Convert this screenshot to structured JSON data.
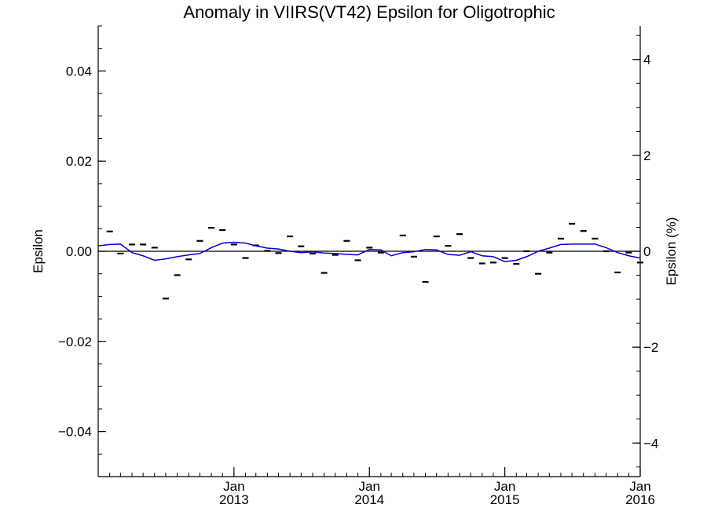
{
  "chart_data": {
    "type": "line",
    "title": "Anomaly in VIIRS(VT42) Epsilon for Oligotrophic",
    "xlabel": "",
    "ylabel": "Epsilon",
    "ylabel_right": "Epsilon (%)",
    "x_axis": {
      "type": "date",
      "range": [
        "2012-01-01",
        "2016-01-01"
      ],
      "ticks": [
        {
          "date": "2013-01-01",
          "line1": "Jan",
          "line2": "2013"
        },
        {
          "date": "2014-01-01",
          "line1": "Jan",
          "line2": "2014"
        },
        {
          "date": "2015-01-01",
          "line1": "Jan",
          "line2": "2015"
        },
        {
          "date": "2016-01-01",
          "line1": "Jan",
          "line2": "2016"
        }
      ],
      "minor_ticks_per_month": true
    },
    "ylim": [
      -0.05,
      0.05
    ],
    "y_ticks": [
      {
        "value": -0.04,
        "label": "−0.04"
      },
      {
        "value": -0.02,
        "label": "−0.02"
      },
      {
        "value": 0.0,
        "label": "0.00"
      },
      {
        "value": 0.02,
        "label": "0.02"
      },
      {
        "value": 0.04,
        "label": "0.04"
      }
    ],
    "y_minor_step": 0.005,
    "ylim_right": [
      -4.7,
      4.7
    ],
    "y_ticks_right": [
      {
        "value": -4,
        "label": "−4"
      },
      {
        "value": -2,
        "label": "−2"
      },
      {
        "value": 0,
        "label": "0"
      },
      {
        "value": 2,
        "label": "2"
      },
      {
        "value": 4,
        "label": "4"
      }
    ],
    "y_minor_step_right": 0.5,
    "grid": false,
    "zero_line": {
      "y": 0.0,
      "color": "#000000"
    },
    "series": [
      {
        "marker": "dash",
        "color": "#000000",
        "points": [
          {
            "x": "2012-02-01",
            "y": 0.0044
          },
          {
            "x": "2012-03-01",
            "y": -0.0005
          },
          {
            "x": "2012-04-01",
            "y": 0.0015
          },
          {
            "x": "2012-05-01",
            "y": 0.0015
          },
          {
            "x": "2012-06-01",
            "y": 0.0008
          },
          {
            "x": "2012-07-01",
            "y": -0.0105
          },
          {
            "x": "2012-08-01",
            "y": -0.0053
          },
          {
            "x": "2012-09-01",
            "y": -0.0018
          },
          {
            "x": "2012-10-01",
            "y": 0.0023
          },
          {
            "x": "2012-11-01",
            "y": 0.0052
          },
          {
            "x": "2012-12-01",
            "y": 0.0047
          },
          {
            "x": "2013-01-01",
            "y": 0.0015
          },
          {
            "x": "2013-02-01",
            "y": -0.0015
          },
          {
            "x": "2013-03-01",
            "y": 0.0013
          },
          {
            "x": "2013-04-01",
            "y": 0.0001
          },
          {
            "x": "2013-05-01",
            "y": -0.0004
          },
          {
            "x": "2013-06-01",
            "y": 0.0033
          },
          {
            "x": "2013-07-01",
            "y": 0.0011
          },
          {
            "x": "2013-08-01",
            "y": -0.0005
          },
          {
            "x": "2013-09-01",
            "y": -0.0048
          },
          {
            "x": "2013-10-01",
            "y": -0.0008
          },
          {
            "x": "2013-11-01",
            "y": 0.0023
          },
          {
            "x": "2013-12-01",
            "y": -0.002
          },
          {
            "x": "2014-01-01",
            "y": 0.0008
          },
          {
            "x": "2014-02-01",
            "y": -0.0003
          },
          {
            "x": "2014-04-01",
            "y": 0.0035
          },
          {
            "x": "2014-05-01",
            "y": -0.0012
          },
          {
            "x": "2014-06-01",
            "y": -0.0068
          },
          {
            "x": "2014-07-01",
            "y": 0.0033
          },
          {
            "x": "2014-08-01",
            "y": 0.0012
          },
          {
            "x": "2014-09-01",
            "y": 0.0038
          },
          {
            "x": "2014-10-01",
            "y": -0.0015
          },
          {
            "x": "2014-11-01",
            "y": -0.0027
          },
          {
            "x": "2014-12-01",
            "y": -0.0025
          },
          {
            "x": "2015-01-01",
            "y": -0.0015
          },
          {
            "x": "2015-02-01",
            "y": -0.0028
          },
          {
            "x": "2015-03-01",
            "y": 0.0
          },
          {
            "x": "2015-04-01",
            "y": -0.005
          },
          {
            "x": "2015-05-01",
            "y": -0.0003
          },
          {
            "x": "2015-06-01",
            "y": 0.0028
          },
          {
            "x": "2015-07-01",
            "y": 0.0061
          },
          {
            "x": "2015-08-01",
            "y": 0.0045
          },
          {
            "x": "2015-09-01",
            "y": 0.0028
          },
          {
            "x": "2015-10-01",
            "y": 0.0
          },
          {
            "x": "2015-11-01",
            "y": -0.0047
          },
          {
            "x": "2015-12-01",
            "y": -0.0003
          },
          {
            "x": "2016-01-01",
            "y": -0.0025
          }
        ]
      },
      {
        "marker": "none",
        "color": "#0000cc",
        "points": [
          {
            "x": "2012-01-01",
            "y": 0.0012
          },
          {
            "x": "2012-02-01",
            "y": 0.0015
          },
          {
            "x": "2012-03-01",
            "y": 0.0016
          },
          {
            "x": "2012-04-01",
            "y": -0.0003
          },
          {
            "x": "2012-05-01",
            "y": -0.001
          },
          {
            "x": "2012-06-01",
            "y": -0.002
          },
          {
            "x": "2012-07-01",
            "y": -0.0017
          },
          {
            "x": "2012-08-01",
            "y": -0.0012
          },
          {
            "x": "2012-09-01",
            "y": -0.0008
          },
          {
            "x": "2012-10-01",
            "y": -0.0005
          },
          {
            "x": "2012-11-01",
            "y": 0.0008
          },
          {
            "x": "2012-12-01",
            "y": 0.0018
          },
          {
            "x": "2013-01-01",
            "y": 0.002
          },
          {
            "x": "2013-02-01",
            "y": 0.0018
          },
          {
            "x": "2013-03-01",
            "y": 0.0012
          },
          {
            "x": "2013-04-01",
            "y": 0.0007
          },
          {
            "x": "2013-05-01",
            "y": 0.0005
          },
          {
            "x": "2013-06-01",
            "y": 0.0
          },
          {
            "x": "2013-07-01",
            "y": -0.0003
          },
          {
            "x": "2013-08-01",
            "y": -0.0001
          },
          {
            "x": "2013-09-01",
            "y": -0.0004
          },
          {
            "x": "2013-10-01",
            "y": -0.0005
          },
          {
            "x": "2013-11-01",
            "y": -0.0007
          },
          {
            "x": "2013-12-01",
            "y": -0.0008
          },
          {
            "x": "2014-01-01",
            "y": 0.0004
          },
          {
            "x": "2014-02-01",
            "y": 0.0003
          },
          {
            "x": "2014-03-01",
            "y": -0.001
          },
          {
            "x": "2014-04-01",
            "y": -0.0003
          },
          {
            "x": "2014-05-01",
            "y": -0.0001
          },
          {
            "x": "2014-06-01",
            "y": 0.0004
          },
          {
            "x": "2014-07-01",
            "y": 0.0003
          },
          {
            "x": "2014-08-01",
            "y": -0.0007
          },
          {
            "x": "2014-09-01",
            "y": -0.0009
          },
          {
            "x": "2014-10-01",
            "y": -0.0001
          },
          {
            "x": "2014-11-01",
            "y": -0.001
          },
          {
            "x": "2014-12-01",
            "y": -0.0012
          },
          {
            "x": "2015-01-01",
            "y": -0.0023
          },
          {
            "x": "2015-02-01",
            "y": -0.002
          },
          {
            "x": "2015-03-01",
            "y": -0.0012
          },
          {
            "x": "2015-04-01",
            "y": 0.0
          },
          {
            "x": "2015-05-01",
            "y": 0.0007
          },
          {
            "x": "2015-06-01",
            "y": 0.0015
          },
          {
            "x": "2015-07-01",
            "y": 0.0016
          },
          {
            "x": "2015-08-01",
            "y": 0.0016
          },
          {
            "x": "2015-09-01",
            "y": 0.0016
          },
          {
            "x": "2015-10-01",
            "y": 0.0008
          },
          {
            "x": "2015-11-01",
            "y": -0.0003
          },
          {
            "x": "2015-12-01",
            "y": -0.001
          },
          {
            "x": "2016-01-01",
            "y": -0.0015
          }
        ]
      }
    ]
  }
}
